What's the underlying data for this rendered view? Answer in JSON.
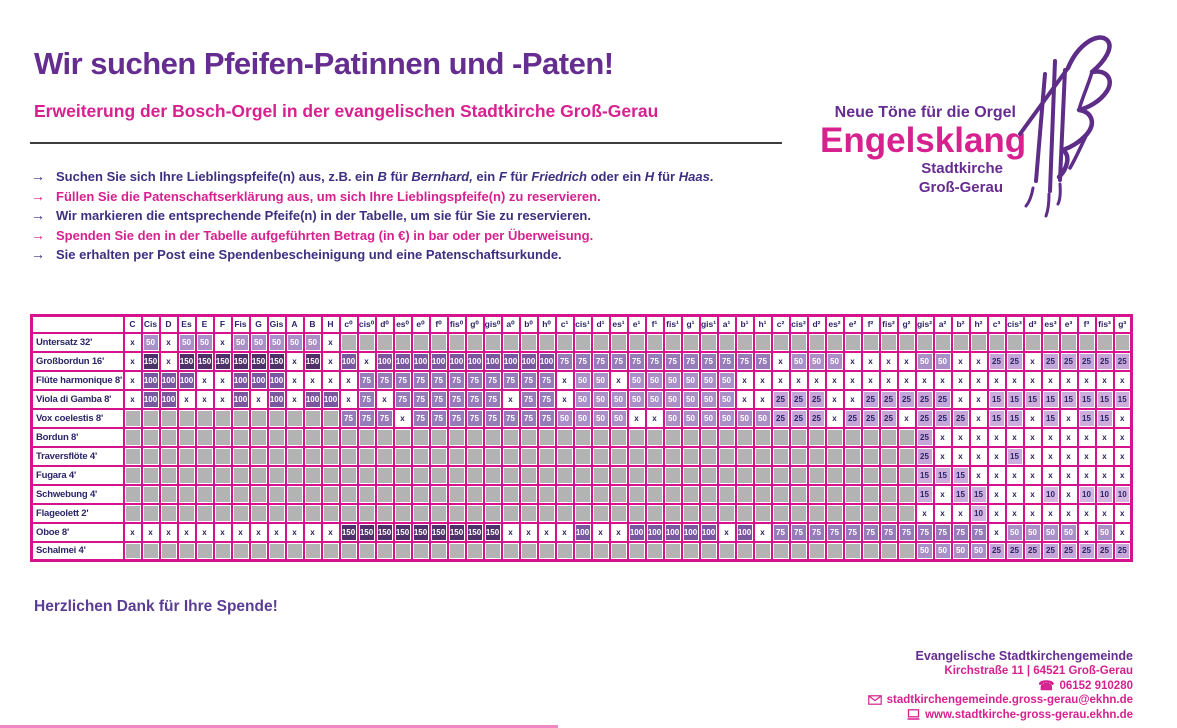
{
  "header": {
    "title": "Wir suchen Pfeifen-Patinnen und -Paten!",
    "subtitle": "Erweiterung der Bosch-Orgel in der evangelischen Stadtkirche Groß-Gerau"
  },
  "logo": {
    "tagline": "Neue Töne für die Orgel",
    "name": "Engelsklang",
    "line1": "Stadtkirche",
    "line2": "Groß-Gerau"
  },
  "intro": {
    "arrow": "→",
    "bullets": [
      {
        "color": "dark",
        "parts": [
          {
            "t": "Suchen Sie sich Ihre Lieblingspfeife(n) aus, z.B. ein "
          },
          {
            "t": "B",
            "i": true
          },
          {
            "t": " für "
          },
          {
            "t": "Bernhard,",
            "i": true
          },
          {
            "t": " ein "
          },
          {
            "t": "F",
            "i": true
          },
          {
            "t": " für "
          },
          {
            "t": "Friedrich",
            "i": true
          },
          {
            "t": " oder ein "
          },
          {
            "t": "H",
            "i": true
          },
          {
            "t": " für "
          },
          {
            "t": "Haas",
            "i": true
          },
          {
            "t": "."
          }
        ]
      },
      {
        "color": "pink",
        "parts": [
          {
            "t": "Füllen Sie die Patenschaftserklärung aus, um sich Ihre Lieblingspfeife(n) zu reservieren."
          }
        ]
      },
      {
        "color": "dark",
        "parts": [
          {
            "t": "Wir markieren die entsprechende Pfeife(n) in der Tabelle, um sie für Sie zu reservieren."
          }
        ]
      },
      {
        "color": "pink",
        "parts": [
          {
            "t": "Spenden Sie den in der Tabelle aufgeführten Betrag (in €) in bar oder per Überweisung."
          }
        ]
      },
      {
        "color": "dark",
        "parts": [
          {
            "t": "Sie erhalten per Post eine Spendenbescheinigung und eine Patenschaftsurkunde."
          }
        ]
      }
    ]
  },
  "table": {
    "columns": [
      "C",
      "Cis",
      "D",
      "Es",
      "E",
      "F",
      "Fis",
      "G",
      "Gis",
      "A",
      "B",
      "H",
      "c⁰",
      "cis⁰",
      "d⁰",
      "es⁰",
      "e⁰",
      "f⁰",
      "fis⁰",
      "g⁰",
      "gis⁰",
      "a⁰",
      "b⁰",
      "h⁰",
      "c¹",
      "cis¹",
      "d¹",
      "es¹",
      "e¹",
      "f¹",
      "fis¹",
      "g¹",
      "gis¹",
      "a¹",
      "b¹",
      "h¹",
      "c²",
      "cis²",
      "d²",
      "es²",
      "e²",
      "f²",
      "fis²",
      "g²",
      "gis²",
      "a²",
      "b²",
      "h²",
      "c³",
      "cis³",
      "d³",
      "es³",
      "e³",
      "f³",
      "fis³",
      "g³"
    ],
    "rows": [
      {
        "label": "Untersatz 32'",
        "cells": [
          "x",
          "50",
          "x",
          "50",
          "50",
          "x",
          "50",
          "50",
          "50",
          "50",
          "50",
          "x",
          "",
          "",
          "",
          "",
          "",
          "",
          "",
          "",
          "",
          "",
          "",
          "",
          "",
          "",
          "",
          "",
          "",
          "",
          "",
          "",
          "",
          "",
          "",
          "",
          "",
          "",
          "",
          "",
          "",
          "",
          "",
          "",
          "",
          "",
          "",
          "",
          "",
          "",
          "",
          "",
          "",
          "",
          "",
          ""
        ]
      },
      {
        "label": "Großbordun 16'",
        "cells": [
          "x",
          "150",
          "x",
          "150",
          "150",
          "150",
          "150",
          "150",
          "150",
          "x",
          "150",
          "x",
          "100",
          "x",
          "100",
          "100",
          "100",
          "100",
          "100",
          "100",
          "100",
          "100",
          "100",
          "100",
          "75",
          "75",
          "75",
          "75",
          "75",
          "75",
          "75",
          "75",
          "75",
          "75",
          "75",
          "75",
          "x",
          "50",
          "50",
          "50",
          "x",
          "x",
          "x",
          "x",
          "50",
          "50",
          "x",
          "x",
          "25",
          "25",
          "x",
          "25",
          "25",
          "25",
          "25",
          "25"
        ]
      },
      {
        "label": "Flûte harmonique 8'",
        "cells": [
          "x",
          "100",
          "100",
          "100",
          "x",
          "x",
          "100",
          "100",
          "100",
          "x",
          "x",
          "x",
          "x",
          "75",
          "75",
          "75",
          "75",
          "75",
          "75",
          "75",
          "75",
          "75",
          "75",
          "75",
          "x",
          "50",
          "50",
          "x",
          "50",
          "50",
          "50",
          "50",
          "50",
          "50",
          "x",
          "x",
          "x",
          "x",
          "x",
          "x",
          "x",
          "x",
          "x",
          "x",
          "x",
          "x",
          "x",
          "x",
          "x",
          "x",
          "x",
          "x",
          "x",
          "x",
          "x",
          "x"
        ]
      },
      {
        "label": "Viola di Gamba 8'",
        "cells": [
          "x",
          "100",
          "100",
          "x",
          "x",
          "x",
          "100",
          "x",
          "100",
          "x",
          "100",
          "100",
          "x",
          "75",
          "x",
          "75",
          "75",
          "75",
          "75",
          "75",
          "75",
          "x",
          "75",
          "75",
          "x",
          "50",
          "50",
          "50",
          "50",
          "50",
          "50",
          "50",
          "50",
          "50",
          "x",
          "x",
          "25",
          "25",
          "25",
          "x",
          "x",
          "25",
          "25",
          "25",
          "25",
          "25",
          "x",
          "x",
          "15",
          "15",
          "15",
          "15",
          "15",
          "15",
          "15",
          "15"
        ]
      },
      {
        "label": "Vox coelestis 8'",
        "cells": [
          "",
          "",
          "",
          "",
          "",
          "",
          "",
          "",
          "",
          "",
          "",
          "",
          "75",
          "75",
          "75",
          "x",
          "75",
          "75",
          "75",
          "75",
          "75",
          "75",
          "75",
          "75",
          "50",
          "50",
          "50",
          "50",
          "x",
          "x",
          "50",
          "50",
          "50",
          "50",
          "50",
          "50",
          "25",
          "25",
          "25",
          "x",
          "25",
          "25",
          "25",
          "x",
          "25",
          "25",
          "25",
          "x",
          "15",
          "15",
          "x",
          "15",
          "x",
          "15",
          "15",
          "x"
        ]
      },
      {
        "label": "Bordun 8'",
        "cells": [
          "",
          "",
          "",
          "",
          "",
          "",
          "",
          "",
          "",
          "",
          "",
          "",
          "",
          "",
          "",
          "",
          "",
          "",
          "",
          "",
          "",
          "",
          "",
          "",
          "",
          "",
          "",
          "",
          "",
          "",
          "",
          "",
          "",
          "",
          "",
          "",
          "",
          "",
          "",
          "",
          "",
          "",
          "",
          "",
          "25",
          "x",
          "x",
          "x",
          "x",
          "x",
          "x",
          "x",
          "x",
          "x",
          "x",
          "x"
        ]
      },
      {
        "label": "Traversflöte 4'",
        "cells": [
          "",
          "",
          "",
          "",
          "",
          "",
          "",
          "",
          "",
          "",
          "",
          "",
          "",
          "",
          "",
          "",
          "",
          "",
          "",
          "",
          "",
          "",
          "",
          "",
          "",
          "",
          "",
          "",
          "",
          "",
          "",
          "",
          "",
          "",
          "",
          "",
          "",
          "",
          "",
          "",
          "",
          "",
          "",
          "",
          "25",
          "x",
          "x",
          "x",
          "x",
          "15",
          "x",
          "x",
          "x",
          "x",
          "x",
          "x"
        ]
      },
      {
        "label": "Fugara 4'",
        "cells": [
          "",
          "",
          "",
          "",
          "",
          "",
          "",
          "",
          "",
          "",
          "",
          "",
          "",
          "",
          "",
          "",
          "",
          "",
          "",
          "",
          "",
          "",
          "",
          "",
          "",
          "",
          "",
          "",
          "",
          "",
          "",
          "",
          "",
          "",
          "",
          "",
          "",
          "",
          "",
          "",
          "",
          "",
          "",
          "",
          "15",
          "15",
          "15",
          "x",
          "x",
          "x",
          "x",
          "x",
          "x",
          "x",
          "x",
          "x"
        ]
      },
      {
        "label": "Schwebung 4'",
        "cells": [
          "",
          "",
          "",
          "",
          "",
          "",
          "",
          "",
          "",
          "",
          "",
          "",
          "",
          "",
          "",
          "",
          "",
          "",
          "",
          "",
          "",
          "",
          "",
          "",
          "",
          "",
          "",
          "",
          "",
          "",
          "",
          "",
          "",
          "",
          "",
          "",
          "",
          "",
          "",
          "",
          "",
          "",
          "",
          "",
          "15",
          "x",
          "15",
          "15",
          "x",
          "x",
          "x",
          "10",
          "x",
          "10",
          "10",
          "10"
        ]
      },
      {
        "label": "Flageolett 2'",
        "cells": [
          "",
          "",
          "",
          "",
          "",
          "",
          "",
          "",
          "",
          "",
          "",
          "",
          "",
          "",
          "",
          "",
          "",
          "",
          "",
          "",
          "",
          "",
          "",
          "",
          "",
          "",
          "",
          "",
          "",
          "",
          "",
          "",
          "",
          "",
          "",
          "",
          "",
          "",
          "",
          "",
          "",
          "",
          "",
          "",
          "x",
          "x",
          "x",
          "10",
          "x",
          "x",
          "x",
          "x",
          "x",
          "x",
          "x",
          "x"
        ]
      },
      {
        "label": "Oboe 8'",
        "cells": [
          "x",
          "x",
          "x",
          "x",
          "x",
          "x",
          "x",
          "x",
          "x",
          "x",
          "x",
          "x",
          "150",
          "150",
          "150",
          "150",
          "150",
          "150",
          "150",
          "150",
          "150",
          "x",
          "x",
          "x",
          "x",
          "100",
          "x",
          "x",
          "100",
          "100",
          "100",
          "100",
          "100",
          "x",
          "100",
          "x",
          "75",
          "75",
          "75",
          "75",
          "75",
          "75",
          "75",
          "75",
          "75",
          "75",
          "75",
          "75",
          "x",
          "50",
          "50",
          "50",
          "50",
          "x",
          "50",
          "x"
        ]
      },
      {
        "label": "Schalmei 4'",
        "cells": [
          "",
          "",
          "",
          "",
          "",
          "",
          "",
          "",
          "",
          "",
          "",
          "",
          "",
          "",
          "",
          "",
          "",
          "",
          "",
          "",
          "",
          "",
          "",
          "",
          "",
          "",
          "",
          "",
          "",
          "",
          "",
          "",
          "",
          "",
          "",
          "",
          "",
          "",
          "",
          "",
          "",
          "",
          "",
          "",
          "50",
          "50",
          "50",
          "50",
          "25",
          "25",
          "25",
          "25",
          "25",
          "25",
          "25",
          "25"
        ]
      }
    ]
  },
  "thanks": "Herzlichen Dank für Ihre Spende!",
  "footer": {
    "org": "Evangelische Stadtkirchengemeinde",
    "address": "Kirchstraße 11 | 64521 Groß-Gerau",
    "phone_icon": "☎",
    "phone": "06152 910280",
    "email": "stadtkirchengemeinde.gross-gerau@ekhn.de",
    "web": "www.stadtkirche-gross-gerau.ekhn.de"
  },
  "colors": {
    "accent_purple": "#662d91",
    "accent_magenta": "#d6218f",
    "grid_pink": "#d6138c",
    "price_150": "#4d3168",
    "price_100": "#7a58a0",
    "price_75": "#967cb9",
    "price_50": "#aa90c7",
    "price_25": "#c6a5d8",
    "price_15": "#cdaddc",
    "price_10": "#d4b6e1",
    "empty_gray": "#b3b3b3"
  }
}
